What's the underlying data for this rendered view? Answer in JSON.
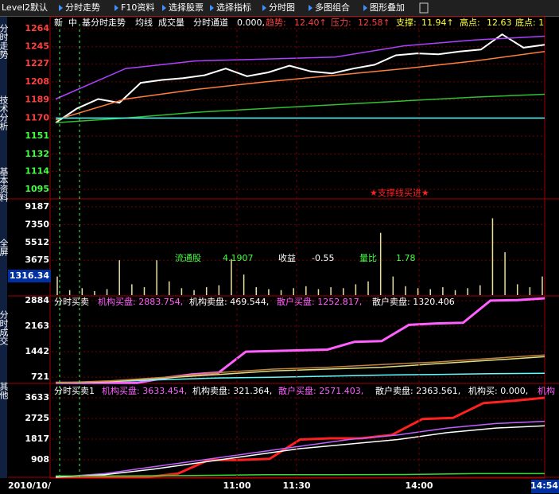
{
  "toolbar": [
    "Level2默认",
    "分时走势",
    "F10资料",
    "选择股票",
    "选择指标",
    "分时图",
    "多图组合",
    "图形叠加"
  ],
  "sidebar": [
    "分时走势",
    "技术分析",
    "基本资料",
    "全屏",
    "分时成交",
    "其他"
  ],
  "info_row": [
    "新",
    "中",
    "基分时走势",
    "均线",
    "成交量",
    "分时通道",
    "0.000,",
    "趋势:",
    "12.40↑",
    "压力:",
    "12.58↑",
    "支撑:",
    "11.94↑",
    "高点:",
    "12.63",
    "底点: 1"
  ],
  "annotation": "★支撑线买进★",
  "stats": [
    "流通股",
    "4.1907",
    "收益",
    "-0.55",
    "量比",
    "1.78"
  ],
  "current_value": "1316.34",
  "time_axis": {
    "start": "2010/10/",
    "ticks": [
      "11:00",
      "11:30",
      "14:00"
    ],
    "end": "14:54"
  },
  "panels": [
    {
      "ylim": [
        1085,
        1269
      ],
      "yticks": [
        1264,
        1245,
        1227,
        1208,
        1189,
        1170,
        1151,
        1132,
        1114,
        1095
      ],
      "series": [
        {
          "color": "#ffffff",
          "values": [
            1165,
            1180,
            1190,
            1186,
            1207,
            1210,
            1212,
            1215,
            1222,
            1214,
            1218,
            1225,
            1219,
            1217,
            1222,
            1226,
            1236,
            1238,
            1237,
            1240,
            1242,
            1258,
            1244,
            1247
          ]
        },
        {
          "color": "#ff7f3f",
          "values": [
            1168,
            1190,
            1200,
            1208,
            1215,
            1222,
            1230,
            1240
          ]
        },
        {
          "color": "#b040ff",
          "values": [
            1190,
            1222,
            1230,
            1232,
            1234,
            1246,
            1252,
            1256
          ]
        },
        {
          "color": "#30c030",
          "values": [
            1165,
            1170,
            1176,
            1180,
            1184,
            1188,
            1192,
            1195
          ]
        },
        {
          "color": "#40ffff",
          "values": [
            1170,
            1170
          ]
        }
      ]
    },
    {
      "ylim": [
        0,
        10000
      ],
      "yticks": [
        9187,
        7350,
        5512,
        3675
      ],
      "bars_color": "#e8e0a0",
      "bars": [
        2000,
        600,
        800,
        500,
        700,
        3675,
        1200,
        900,
        3675,
        1500,
        800,
        600,
        900,
        1100,
        3800,
        2200,
        900,
        700,
        600,
        800,
        1000,
        700,
        900,
        800,
        1200,
        1500,
        6500,
        2000,
        1000,
        800,
        700,
        900,
        600,
        800,
        1100,
        8000,
        4500,
        1200,
        900,
        2000
      ]
    },
    {
      "ylim": [
        545,
        2995
      ],
      "yticks": [
        2884,
        2163,
        1442,
        721
      ],
      "title": "分时买卖",
      "legend": [
        "机构买盘: 2883.754,",
        "机构卖盘: 469.544,",
        "散户买盘: 1252.817,",
        "散户卖盘: 1320.406"
      ],
      "series": [
        {
          "color": "#ff60ff",
          "values": [
            560,
            560,
            560,
            560,
            700,
            800,
            850,
            1442,
            1460,
            1480,
            1500,
            1720,
            1740,
            2200,
            2240,
            2260,
            2884,
            2900,
            2950
          ]
        },
        {
          "color": "#60ffff",
          "values": [
            560,
            600,
            650,
            700,
            720,
            750,
            780,
            800,
            820,
            830
          ]
        },
        {
          "color": "#e0e080",
          "values": [
            560,
            600,
            700,
            800,
            900,
            950,
            1000,
            1100,
            1200,
            1300
          ]
        },
        {
          "color": "#c08040",
          "values": [
            560,
            620,
            720,
            850,
            950,
            1000,
            1080,
            1150,
            1250,
            1350
          ]
        }
      ]
    },
    {
      "ylim": [
        139,
        4157
      ],
      "yticks": [
        3633,
        2725,
        1817,
        908
      ],
      "title": "分时买卖1",
      "legend": [
        "机构买盘: 3633.454,",
        "机构卖盘: 321.364,",
        "散户买盘: 2571.403,",
        "散户卖盘: 2363.561,",
        "机构买: 0.000,",
        "机构"
      ],
      "series": [
        {
          "color": "#ff2020",
          "values": [
            150,
            150,
            150,
            150,
            300,
            900,
            900,
            950,
            1800,
            1850,
            1850,
            2000,
            2700,
            2750,
            3400,
            3500,
            3633
          ]
        },
        {
          "color": "#c060ff",
          "values": [
            150,
            300,
            600,
            900,
            1200,
            1500,
            1800,
            2000,
            2300,
            2500,
            2600
          ]
        },
        {
          "color": "#ffffff",
          "values": [
            150,
            250,
            500,
            800,
            1100,
            1400,
            1600,
            1800,
            2100,
            2300,
            2400
          ]
        },
        {
          "color": "#30e030",
          "values": [
            200,
            200,
            220,
            250,
            250,
            260,
            300,
            300
          ]
        }
      ]
    }
  ]
}
